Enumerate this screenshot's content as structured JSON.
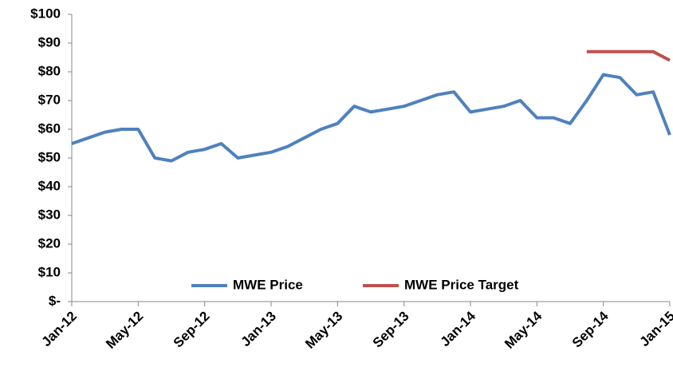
{
  "chart_data": {
    "type": "line",
    "categories": [
      "Jan-12",
      null,
      null,
      null,
      "May-12",
      null,
      null,
      null,
      "Sep-12",
      null,
      null,
      null,
      "Jan-13",
      null,
      null,
      null,
      "May-13",
      null,
      null,
      null,
      "Sep-13",
      null,
      null,
      null,
      "Jan-14",
      null,
      null,
      null,
      "May-14",
      null,
      null,
      null,
      "Sep-14",
      null,
      null,
      null,
      "Jan-15"
    ],
    "series": [
      {
        "name": "MWE Price",
        "color": "#4f81bd",
        "values": [
          55,
          57,
          59,
          60,
          60,
          50,
          49,
          52,
          53,
          55,
          50,
          51,
          52,
          54,
          57,
          60,
          62,
          68,
          66,
          67,
          68,
          70,
          72,
          73,
          66,
          67,
          68,
          70,
          64,
          64,
          62,
          70,
          79,
          78,
          72,
          73,
          58
        ]
      },
      {
        "name": "MWE Price Target",
        "color": "#c0504d",
        "values": [
          null,
          null,
          null,
          null,
          null,
          null,
          null,
          null,
          null,
          null,
          null,
          null,
          null,
          null,
          null,
          null,
          null,
          null,
          null,
          null,
          null,
          null,
          null,
          null,
          null,
          null,
          null,
          null,
          null,
          null,
          null,
          87,
          87,
          87,
          87,
          87,
          84
        ]
      }
    ],
    "ylim": [
      0,
      100
    ],
    "yticks": [
      {
        "value": 0,
        "label": "$-"
      },
      {
        "value": 10,
        "label": "$10"
      },
      {
        "value": 20,
        "label": "$20"
      },
      {
        "value": 30,
        "label": "$30"
      },
      {
        "value": 40,
        "label": "$40"
      },
      {
        "value": 50,
        "label": "$50"
      },
      {
        "value": 60,
        "label": "$60"
      },
      {
        "value": 70,
        "label": "$70"
      },
      {
        "value": 80,
        "label": "$80"
      },
      {
        "value": 90,
        "label": "$90"
      },
      {
        "value": 100,
        "label": "$100"
      }
    ],
    "grid": false,
    "legend": "bottom"
  }
}
